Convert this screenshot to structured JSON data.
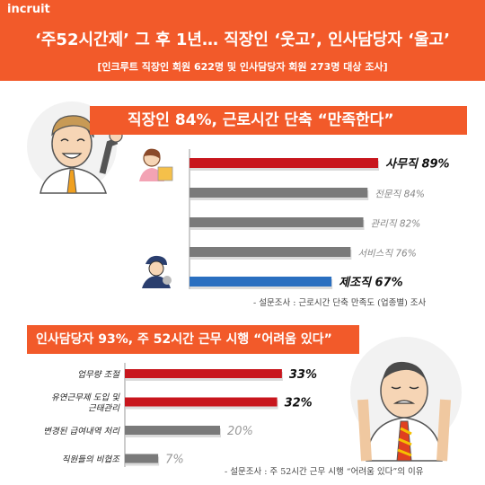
{
  "brand": "incruit",
  "header": {
    "title": "‘주52시간제’ 그 후 1년… 직장인 ‘웃고’, 인사담당자 ‘울고’",
    "subtitle": "[인크루트 직장인 회원 622명 및 인사담당자 회원 273명 대상 조사]"
  },
  "sections": [
    {
      "banner": "직장인 84%, 근로시간 단축 “만족한다”",
      "source": "- 설문조사 : 근로시간 단축 만족도 (업종별) 조사"
    },
    {
      "banner": "인사담당자 93%, 주 52시간 근무 시행 “어려움 있다”",
      "source": "- 설문조사 : 주 52시간 근무 시행 “어려움 있다”의 이유"
    }
  ],
  "colors": {
    "accent": "#f25a2a",
    "red": "#c8161d",
    "gray": "#7a7a7a",
    "blue": "#2a6fc0"
  },
  "chart_data": [
    {
      "type": "bar",
      "orientation": "horizontal",
      "title": "직장인 84%, 근로시간 단축 “만족한다”",
      "categories": [
        "사무직",
        "전문직",
        "관리직",
        "서비스직",
        "제조직"
      ],
      "values": [
        89,
        84,
        82,
        76,
        67
      ],
      "unit": "%",
      "bar_colors": [
        "#c8161d",
        "#7a7a7a",
        "#7a7a7a",
        "#7a7a7a",
        "#2a6fc0"
      ],
      "label_emphasis": [
        true,
        false,
        false,
        false,
        true
      ],
      "xlim": [
        0,
        100
      ]
    },
    {
      "type": "bar",
      "orientation": "horizontal",
      "title": "인사담당자 93%, 주 52시간 근무 시행 “어려움 있다”",
      "categories": [
        "업무량 조절",
        "유연근무제 도입 및 근태관리",
        "변경된 급여내역 처리",
        "직원들의 비협조"
      ],
      "category_lines": [
        [
          "업무량 조절"
        ],
        [
          "유연근무제 도입 및",
          "근태관리"
        ],
        [
          "변경된 급여내역 처리"
        ],
        [
          "직원들의 비협조"
        ]
      ],
      "values": [
        33,
        32,
        20,
        7
      ],
      "unit": "%",
      "bar_colors": [
        "#c8161d",
        "#c8161d",
        "#7a7a7a",
        "#7a7a7a"
      ],
      "label_emphasis": [
        true,
        true,
        false,
        false
      ],
      "xlim": [
        0,
        100
      ]
    }
  ]
}
